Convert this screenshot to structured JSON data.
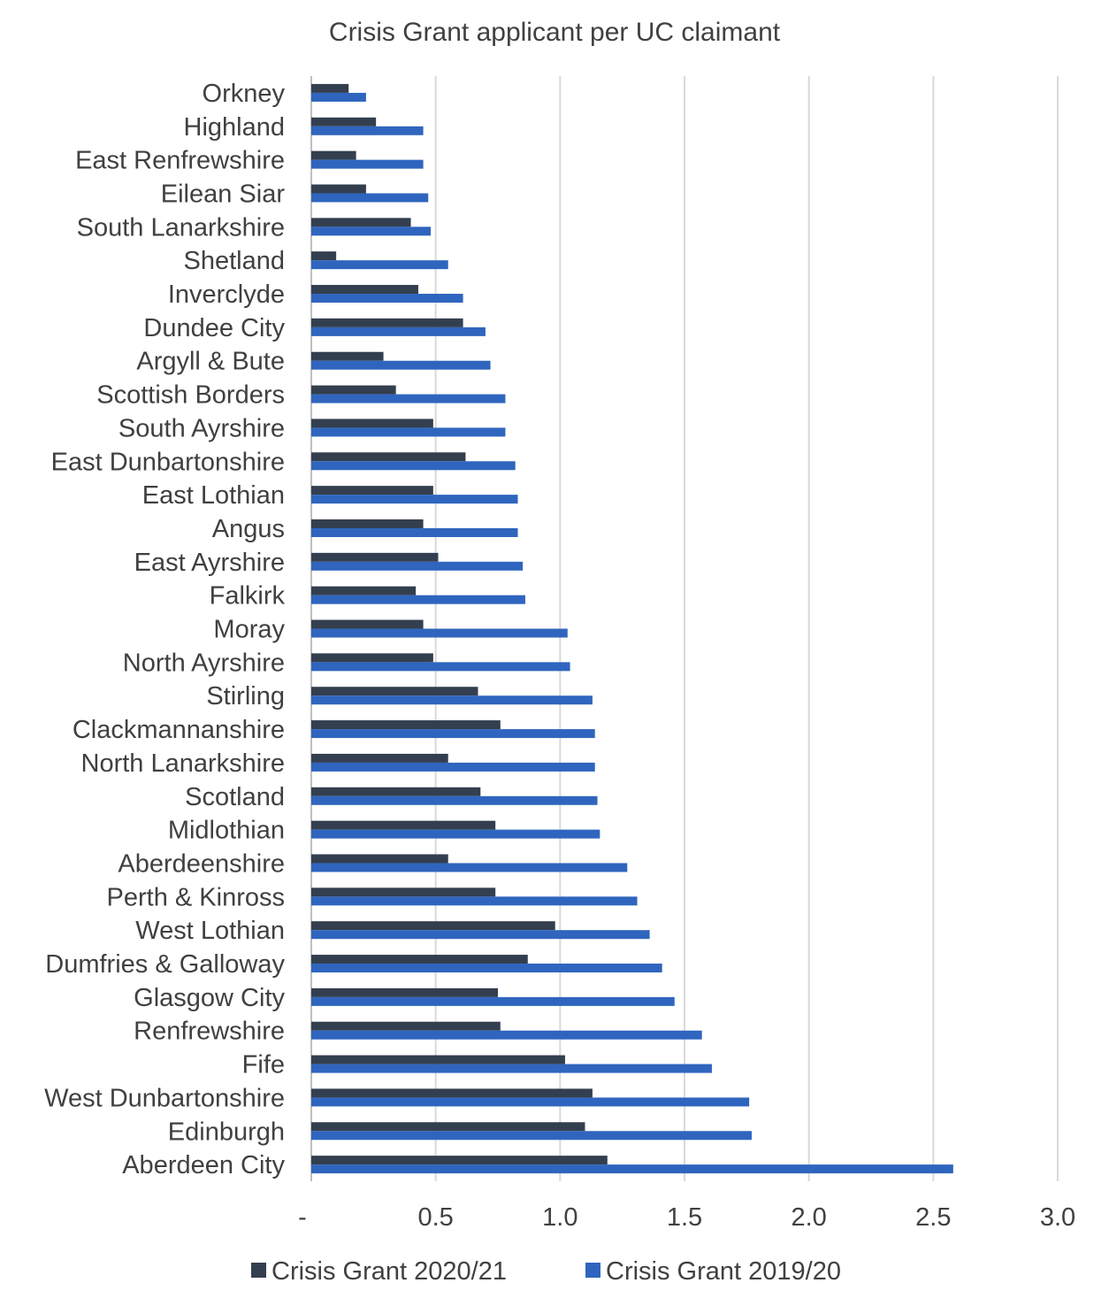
{
  "chart_data": {
    "type": "bar",
    "orientation": "horizontal",
    "title": "Crisis Grant applicant per UC claimant",
    "xlabel": "",
    "ylabel": "",
    "xlim": [
      0,
      3.0
    ],
    "x_ticks": [
      "-",
      "0.5",
      "1.0",
      "1.5",
      "2.0",
      "2.5",
      "3.0"
    ],
    "grid": true,
    "legend_position": "bottom",
    "categories": [
      "Orkney",
      "Highland",
      "East Renfrewshire",
      "Eilean Siar",
      "South Lanarkshire",
      "Shetland",
      "Inverclyde",
      "Dundee City",
      "Argyll & Bute",
      "Scottish Borders",
      "South Ayrshire",
      "East Dunbartonshire",
      "East Lothian",
      "Angus",
      "East Ayrshire",
      "Falkirk",
      "Moray",
      "North Ayrshire",
      "Stirling",
      "Clackmannanshire",
      "North Lanarkshire",
      "Scotland",
      "Midlothian",
      "Aberdeenshire",
      "Perth & Kinross",
      "West Lothian",
      "Dumfries & Galloway",
      "Glasgow City",
      "Renfrewshire",
      "Fife",
      "West Dunbartonshire",
      "Edinburgh",
      "Aberdeen City"
    ],
    "series": [
      {
        "name": "Crisis Grant 2020/21",
        "color": "#333f4f",
        "values": [
          0.15,
          0.26,
          0.18,
          0.22,
          0.4,
          0.1,
          0.43,
          0.61,
          0.29,
          0.34,
          0.49,
          0.62,
          0.49,
          0.45,
          0.51,
          0.42,
          0.45,
          0.49,
          0.67,
          0.76,
          0.55,
          0.68,
          0.74,
          0.55,
          0.74,
          0.98,
          0.87,
          0.75,
          0.76,
          1.02,
          1.13,
          1.1,
          1.19
        ]
      },
      {
        "name": "Crisis Grant 2019/20",
        "color": "#2f65be",
        "values": [
          0.22,
          0.45,
          0.45,
          0.47,
          0.48,
          0.55,
          0.61,
          0.7,
          0.72,
          0.78,
          0.78,
          0.82,
          0.83,
          0.83,
          0.85,
          0.86,
          1.03,
          1.04,
          1.13,
          1.14,
          1.14,
          1.15,
          1.16,
          1.27,
          1.31,
          1.36,
          1.41,
          1.46,
          1.57,
          1.61,
          1.76,
          1.77,
          2.58
        ]
      }
    ]
  }
}
